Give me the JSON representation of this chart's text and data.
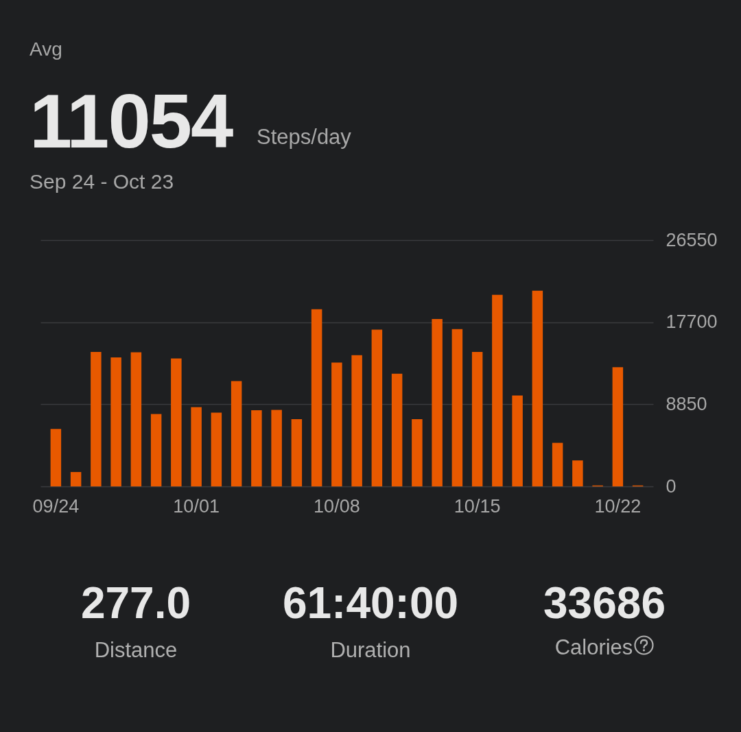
{
  "chart_data": {
    "type": "bar",
    "title": "11054",
    "subtitle": "Sep 24 - Oct 23",
    "annotations": [
      "Avg",
      "Steps/day",
      "277.0",
      "Distance",
      "61:40:00",
      "Duration",
      "33686",
      "Calories"
    ],
    "categories": [
      "09/24",
      null,
      null,
      null,
      null,
      null,
      null,
      "10/01",
      null,
      null,
      null,
      null,
      null,
      null,
      "10/08",
      null,
      null,
      null,
      null,
      null,
      null,
      "10/15",
      null,
      null,
      null,
      null,
      null,
      null,
      "10/22",
      null
    ],
    "values": [
      6200,
      1550,
      14500,
      13900,
      14450,
      7800,
      13800,
      8550,
      7950,
      11350,
      8200,
      8250,
      7250,
      19100,
      13350,
      14150,
      16900,
      12150,
      7250,
      18050,
      16950,
      14500,
      20650,
      9800,
      21100,
      4700,
      2800,
      100,
      12850,
      100
    ],
    "color": "#e85900",
    "ylim": [
      0,
      26550
    ],
    "yticks": [
      0,
      8850,
      17700,
      26550
    ],
    "grid": "y"
  }
}
